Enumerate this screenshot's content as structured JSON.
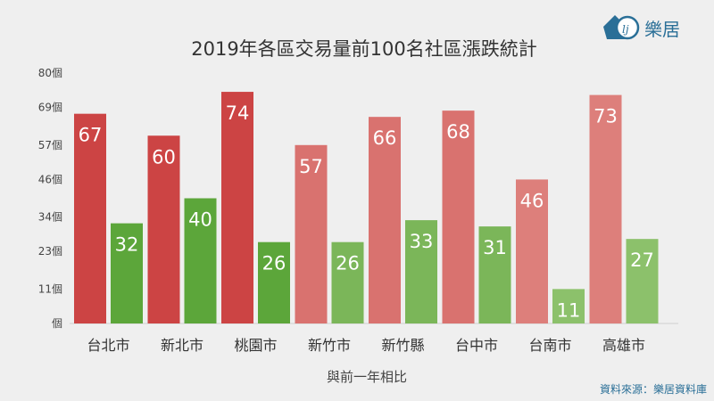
{
  "brand": {
    "name": "樂居",
    "logo_icon": "leju-logo-icon",
    "color": "#2a6f97"
  },
  "source_note": "資料來源：樂居資料庫",
  "chart_data": {
    "type": "bar",
    "title": "2019年各區交易量前100名社區漲跌統計",
    "xlabel": "與前一年相比",
    "ylabel": "",
    "ylim": [
      0,
      80
    ],
    "yticks": [
      0,
      11,
      23,
      34,
      46,
      57,
      69,
      80
    ],
    "ytick_labels": [
      "個",
      "11個",
      "23個",
      "34個",
      "46個",
      "57個",
      "69個",
      "80個"
    ],
    "categories": [
      "台北市",
      "新北市",
      "桃園市",
      "新竹市",
      "新竹縣",
      "台中市",
      "台南市",
      "高雄市"
    ],
    "series": [
      {
        "values": [
          67,
          60,
          74,
          57,
          66,
          68,
          46,
          73
        ],
        "colors": [
          "#cc4444",
          "#cc4444",
          "#cc4444",
          "#d9726f",
          "#d9726f",
          "#d9726f",
          "#dd7f7b",
          "#dd7f7b"
        ]
      },
      {
        "values": [
          32,
          40,
          26,
          26,
          33,
          31,
          11,
          27
        ],
        "colors": [
          "#5ca63a",
          "#5ca63a",
          "#5ca63a",
          "#7bb659",
          "#7bb659",
          "#7bb659",
          "#8cc16b",
          "#8cc16b"
        ]
      }
    ],
    "grid": false,
    "data_labels": true
  }
}
